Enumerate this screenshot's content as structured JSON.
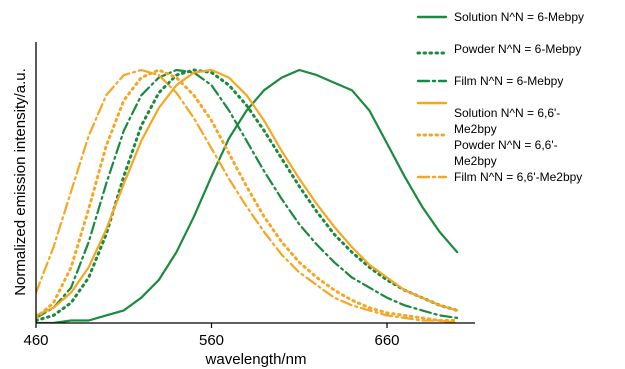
{
  "chart_data": {
    "type": "line",
    "xlabel": "wavelength/nm",
    "ylabel": "Normalized emission intensity/a.u.",
    "xlim": [
      460,
      897
    ],
    "ylim": [
      0,
      1.0
    ],
    "x_ticks": [
      "460",
      "560",
      "660"
    ],
    "y_ticks_shown": false,
    "grid": false,
    "legend_position": "right",
    "colors": {
      "green": "#1a8a3e",
      "orange": "#f5a623"
    },
    "series": [
      {
        "name": "Solution N^N = 6-Mebpy",
        "color": "#1a8a3e",
        "style": "solid",
        "x": [
          460,
          470,
          480,
          490,
          500,
          510,
          520,
          530,
          540,
          550,
          560,
          570,
          580,
          590,
          600,
          610,
          620,
          630,
          640,
          650,
          660,
          670,
          680,
          690,
          700
        ],
        "y": [
          0.0,
          0.0,
          0.01,
          0.01,
          0.03,
          0.05,
          0.1,
          0.17,
          0.28,
          0.42,
          0.58,
          0.73,
          0.84,
          0.92,
          0.97,
          1.0,
          0.98,
          0.95,
          0.92,
          0.84,
          0.71,
          0.58,
          0.46,
          0.36,
          0.28
        ]
      },
      {
        "name": "Powder N^N = 6-Mebpy",
        "color": "#1a8a3e",
        "style": "dotted",
        "x": [
          460,
          470,
          480,
          490,
          500,
          510,
          520,
          530,
          540,
          550,
          560,
          570,
          580,
          590,
          600,
          610,
          620,
          630,
          640,
          650,
          660,
          670,
          680,
          690,
          700
        ],
        "y": [
          0.01,
          0.03,
          0.08,
          0.18,
          0.35,
          0.58,
          0.78,
          0.91,
          0.98,
          1.0,
          0.99,
          0.94,
          0.86,
          0.76,
          0.65,
          0.54,
          0.44,
          0.35,
          0.28,
          0.22,
          0.17,
          0.13,
          0.1,
          0.07,
          0.05
        ]
      },
      {
        "name": "Film N^N = 6-Mebpy",
        "color": "#1a8a3e",
        "style": "dashdot",
        "x": [
          460,
          470,
          480,
          490,
          500,
          510,
          520,
          530,
          540,
          550,
          560,
          570,
          580,
          590,
          600,
          610,
          620,
          630,
          640,
          650,
          660,
          670,
          680,
          690,
          700
        ],
        "y": [
          0.02,
          0.06,
          0.14,
          0.32,
          0.55,
          0.76,
          0.9,
          0.97,
          1.0,
          0.99,
          0.94,
          0.84,
          0.72,
          0.6,
          0.49,
          0.39,
          0.31,
          0.24,
          0.18,
          0.14,
          0.1,
          0.07,
          0.05,
          0.03,
          0.02
        ]
      },
      {
        "name": "Solution N^N = 6,6'-Me2bpy",
        "color": "#f5a623",
        "style": "solid",
        "x": [
          460,
          470,
          480,
          490,
          500,
          510,
          520,
          530,
          540,
          550,
          560,
          570,
          580,
          590,
          600,
          610,
          620,
          630,
          640,
          650,
          660,
          670,
          680,
          690,
          700
        ],
        "y": [
          0.03,
          0.06,
          0.12,
          0.22,
          0.37,
          0.55,
          0.72,
          0.85,
          0.94,
          0.99,
          1.0,
          0.97,
          0.9,
          0.8,
          0.68,
          0.57,
          0.47,
          0.38,
          0.3,
          0.23,
          0.18,
          0.13,
          0.1,
          0.07,
          0.05
        ]
      },
      {
        "name": "Powder N^N = 6,6'-Me2bpy",
        "color": "#f5a623",
        "style": "dotted",
        "x": [
          460,
          470,
          480,
          490,
          500,
          510,
          520,
          530,
          540,
          550,
          560,
          570,
          580,
          590,
          600,
          610,
          620,
          630,
          640,
          650,
          660,
          670,
          680,
          690,
          700
        ],
        "y": [
          0.02,
          0.08,
          0.22,
          0.45,
          0.7,
          0.88,
          0.97,
          1.0,
          0.97,
          0.9,
          0.8,
          0.67,
          0.54,
          0.42,
          0.32,
          0.24,
          0.18,
          0.13,
          0.09,
          0.06,
          0.04,
          0.03,
          0.02,
          0.01,
          0.01
        ]
      },
      {
        "name": "Film N^N = 6,6'-Me2bpy",
        "color": "#f5a623",
        "style": "dashdot",
        "x": [
          460,
          470,
          480,
          490,
          500,
          510,
          520,
          530,
          540,
          550,
          560,
          570,
          580,
          590,
          600,
          610,
          620,
          630,
          640,
          650,
          660,
          670,
          680,
          690,
          700
        ],
        "y": [
          0.12,
          0.3,
          0.52,
          0.74,
          0.9,
          0.98,
          1.0,
          0.98,
          0.91,
          0.81,
          0.69,
          0.57,
          0.46,
          0.36,
          0.27,
          0.2,
          0.15,
          0.1,
          0.07,
          0.05,
          0.03,
          0.02,
          0.01,
          0.01,
          0.0
        ]
      }
    ]
  },
  "legend": {
    "items": [
      {
        "lines": [
          "Solution N^N = 6-Mebpy"
        ]
      },
      {
        "lines": [
          "Powder N^N = 6-Mebpy"
        ]
      },
      {
        "lines": [
          "Film N^N = 6-Mebpy"
        ]
      },
      {
        "lines": [
          "Solution N^N = 6,6'-",
          "Me2bpy"
        ]
      },
      {
        "lines": [
          "Powder N^N = 6,6'-",
          "Me2bpy"
        ]
      },
      {
        "lines": [
          "Film N^N = 6,6'-Me2bpy"
        ]
      }
    ]
  }
}
